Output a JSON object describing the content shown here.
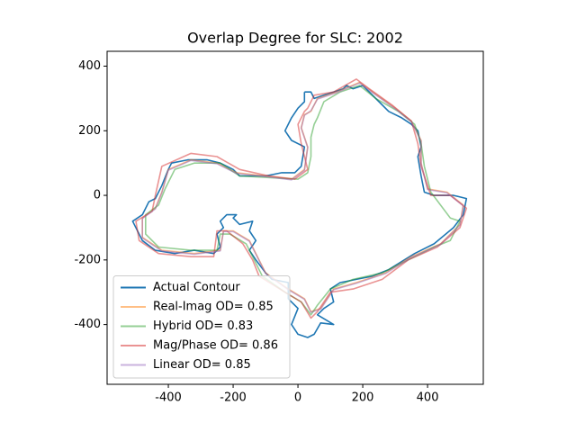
{
  "chart_data": {
    "type": "line",
    "title": "Overlap Degree for SLC: 2002",
    "xlim": [
      -589,
      572
    ],
    "ylim": [
      -585,
      446
    ],
    "xticks": [
      -400,
      -200,
      0,
      200,
      400
    ],
    "yticks": [
      -400,
      -200,
      0,
      200,
      400
    ],
    "grid": false,
    "legend": "lower left",
    "series": [
      {
        "name": "Actual Contour",
        "color": "#1f77b4",
        "x": [
          20,
          40,
          50,
          80,
          110,
          140,
          150,
          170,
          200,
          230,
          250,
          280,
          320,
          350,
          370,
          380,
          370,
          380,
          390,
          420,
          480,
          520,
          510,
          480,
          420,
          360,
          280,
          230,
          180,
          130,
          100,
          110,
          80,
          60,
          110,
          70,
          50,
          30,
          0,
          -20,
          0,
          -30,
          -30,
          -80,
          -100,
          -130,
          -150,
          -130,
          -150,
          -140,
          -180,
          -200,
          -190,
          -220,
          -240,
          -230,
          -250,
          -240,
          -260,
          -320,
          -380,
          -440,
          -480,
          -510,
          -480,
          -460,
          -440,
          -420,
          -400,
          -390,
          -340,
          -280,
          -240,
          -200,
          -180,
          -100,
          -50,
          -10,
          10,
          20,
          -20,
          -40,
          -20,
          0,
          20,
          20
        ],
        "values": [
          320,
          320,
          300,
          310,
          320,
          330,
          340,
          330,
          340,
          310,
          290,
          260,
          240,
          220,
          200,
          150,
          120,
          60,
          10,
          0,
          0,
          -10,
          -60,
          -100,
          -150,
          -180,
          -230,
          -250,
          -260,
          -270,
          -290,
          -330,
          -350,
          -370,
          -400,
          -395,
          -430,
          -440,
          -430,
          -400,
          -350,
          -320,
          -270,
          -260,
          -240,
          -200,
          -170,
          -140,
          -110,
          -80,
          -90,
          -70,
          -60,
          -60,
          -80,
          -100,
          -120,
          -160,
          -180,
          -170,
          -180,
          -170,
          -140,
          -80,
          -60,
          -20,
          -10,
          30,
          80,
          100,
          110,
          110,
          100,
          80,
          60,
          60,
          70,
          70,
          90,
          150,
          170,
          200,
          240,
          270,
          290,
          320
        ]
      },
      {
        "name": "Real-Imag OD= 0.85",
        "color": "#ff7f0e80",
        "x": [
          40,
          60,
          120,
          190,
          230,
          300,
          350,
          380,
          380,
          400,
          460,
          510,
          500,
          440,
          350,
          270,
          180,
          110,
          70,
          40,
          20,
          -30,
          -100,
          -130,
          -150,
          -200,
          -230,
          -240,
          -320,
          -420,
          -480,
          -480,
          -440,
          -420,
          -400,
          -330,
          -250,
          -190,
          -100,
          -20,
          20,
          30,
          10,
          20,
          40
        ],
        "values": [
          260,
          300,
          320,
          350,
          320,
          270,
          230,
          170,
          100,
          20,
          10,
          -30,
          -90,
          -150,
          -190,
          -240,
          -270,
          -290,
          -350,
          -360,
          -320,
          -290,
          -240,
          -180,
          -140,
          -110,
          -110,
          -170,
          -180,
          -170,
          -130,
          -70,
          -40,
          10,
          80,
          110,
          100,
          70,
          60,
          50,
          80,
          150,
          210,
          250,
          260
        ]
      },
      {
        "name": "Hybrid OD= 0.83",
        "color": "#2ca02c80",
        "x": [
          60,
          80,
          130,
          190,
          240,
          310,
          360,
          380,
          390,
          410,
          470,
          500,
          470,
          420,
          340,
          260,
          170,
          100,
          60,
          40,
          10,
          -40,
          -110,
          -140,
          -160,
          -210,
          -240,
          -250,
          -330,
          -430,
          -470,
          -470,
          -430,
          -410,
          -380,
          -320,
          -240,
          -180,
          -90,
          0,
          30,
          40,
          40,
          50,
          60
        ],
        "values": [
          240,
          290,
          320,
          340,
          300,
          260,
          220,
          160,
          90,
          10,
          -70,
          -80,
          -140,
          -160,
          -200,
          -240,
          -260,
          -290,
          -340,
          -370,
          -330,
          -300,
          -250,
          -190,
          -150,
          -120,
          -120,
          -170,
          -170,
          -160,
          -120,
          -60,
          -30,
          20,
          80,
          100,
          100,
          60,
          55,
          50,
          70,
          120,
          180,
          220,
          240
        ]
      },
      {
        "name": "Mag/Phase OD= 0.86",
        "color": "#d6272880",
        "x": [
          30,
          50,
          110,
          180,
          220,
          290,
          350,
          370,
          380,
          410,
          470,
          520,
          500,
          430,
          340,
          260,
          170,
          100,
          60,
          40,
          10,
          -40,
          -120,
          -140,
          -170,
          -220,
          -250,
          -260,
          -330,
          -430,
          -490,
          -500,
          -450,
          -440,
          -420,
          -330,
          -250,
          -180,
          -90,
          -10,
          30,
          10,
          0,
          20,
          30
        ],
        "values": [
          270,
          310,
          320,
          360,
          330,
          280,
          230,
          160,
          90,
          0,
          0,
          -40,
          -100,
          -160,
          -200,
          -260,
          -290,
          -300,
          -360,
          -380,
          -330,
          -300,
          -250,
          -200,
          -150,
          -110,
          -110,
          -190,
          -190,
          -180,
          -140,
          -80,
          -50,
          0,
          90,
          130,
          120,
          80,
          60,
          50,
          80,
          160,
          220,
          260,
          270
        ]
      },
      {
        "name": "Linear OD= 0.85",
        "color": "#9467bd80",
        "x": [
          40,
          60,
          120,
          190,
          230,
          300,
          350,
          380,
          380,
          400,
          460,
          510,
          500,
          440,
          350,
          270,
          180,
          110,
          70,
          40,
          20,
          -30,
          -100,
          -130,
          -150,
          -200,
          -230,
          -240,
          -320,
          -420,
          -480,
          -480,
          -440,
          -420,
          -400,
          -330,
          -250,
          -190,
          -100,
          -20,
          20,
          30,
          10,
          20,
          40
        ],
        "values": [
          262,
          298,
          318,
          348,
          318,
          268,
          228,
          168,
          98,
          18,
          8,
          -32,
          -92,
          -152,
          -192,
          -242,
          -272,
          -292,
          -352,
          -362,
          -322,
          -292,
          -242,
          -182,
          -142,
          -112,
          -112,
          -172,
          -182,
          -172,
          -132,
          -72,
          -42,
          8,
          78,
          108,
          98,
          68,
          58,
          48,
          78,
          148,
          208,
          248,
          262
        ]
      }
    ]
  }
}
